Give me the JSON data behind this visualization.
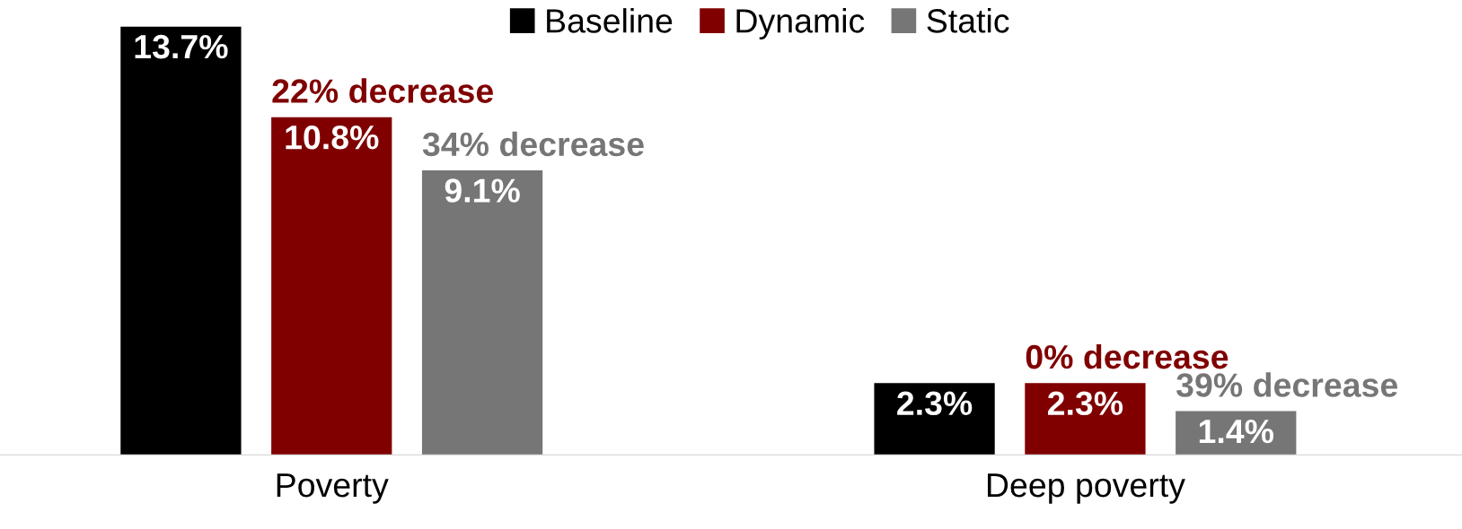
{
  "chart_data": {
    "type": "bar",
    "categories": [
      "Poverty",
      "Deep poverty"
    ],
    "series": [
      {
        "name": "Baseline",
        "color": "#000000",
        "values": [
          13.7,
          2.3
        ],
        "value_labels": [
          "13.7%",
          "2.3%"
        ]
      },
      {
        "name": "Dynamic",
        "color": "#800000",
        "values": [
          10.8,
          2.3
        ],
        "value_labels": [
          "10.8%",
          "2.3%"
        ]
      },
      {
        "name": "Static",
        "color": "#767676",
        "values": [
          9.1,
          1.4
        ],
        "value_labels": [
          "9.1%",
          "1.4%"
        ]
      }
    ],
    "legend": "top",
    "grid": false,
    "annotations": [
      {
        "text": "22% decrease",
        "x": "Poverty",
        "y": 10.8
      },
      "34% decrease",
      {
        "text": "0% decrease",
        "x": "Deep poverty",
        "y": 2.3
      },
      "39% decrease"
    ]
  }
}
